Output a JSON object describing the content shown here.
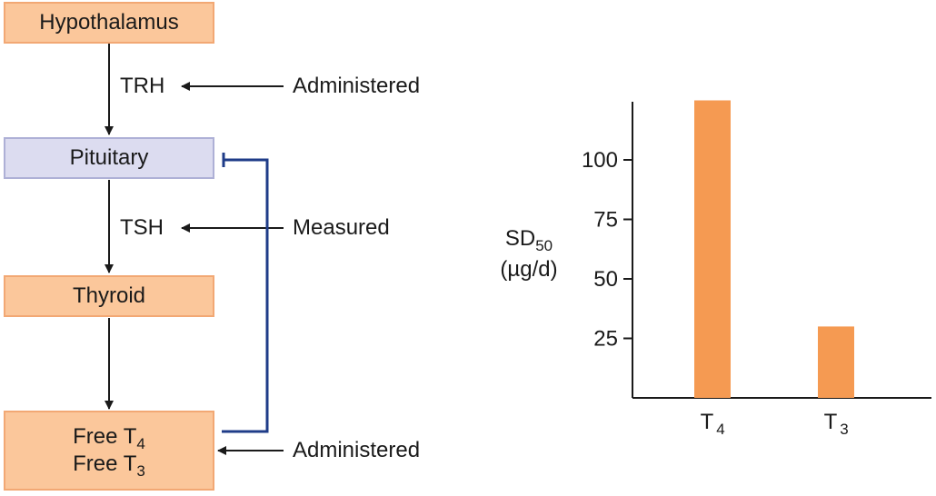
{
  "flow": {
    "hypothalamus": "Hypothalamus",
    "trh": "TRH",
    "trh_note": "Administered",
    "pituitary": "Pituitary",
    "tsh": "TSH",
    "tsh_note": "Measured",
    "thyroid": "Thyroid",
    "free_t4_base": "Free T",
    "free_t4_sub": "4",
    "free_t3_base": "Free T",
    "free_t3_sub": "3",
    "hormone_note": "Administered"
  },
  "colors": {
    "box_fill": "#fbc79b",
    "box_border": "#f2a874",
    "pituitary_fill": "#dcdcf0",
    "feedback_line": "#1f3c88",
    "bar": "#f59a52"
  },
  "chart_data": {
    "type": "bar",
    "ylabel_base": "SD",
    "ylabel_sub": "50",
    "ylabel_unit": "(µg/d)",
    "categories": [
      {
        "base": "T",
        "sub": "4"
      },
      {
        "base": "T",
        "sub": "3"
      }
    ],
    "values": [
      125,
      30
    ],
    "yticks": [
      25,
      50,
      75,
      100
    ],
    "ylim": [
      0,
      125
    ]
  }
}
